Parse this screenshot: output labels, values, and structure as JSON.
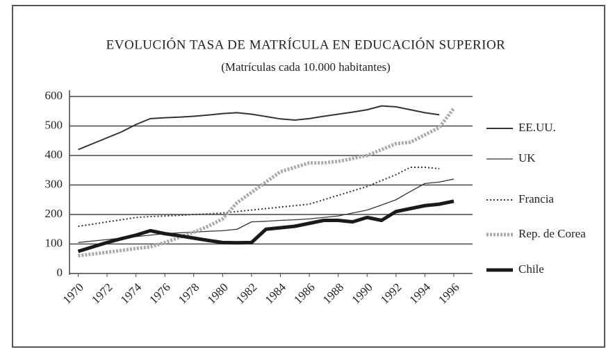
{
  "chart_data": {
    "type": "line",
    "title": "EVOLUCIÓN TASA DE MATRÍCULA EN EDUCACIÓN SUPERIOR",
    "subtitle": "(Matrículas cada 10.000 habitantes)",
    "x": [
      1970,
      1971,
      1972,
      1973,
      1974,
      1975,
      1976,
      1977,
      1978,
      1979,
      1980,
      1981,
      1982,
      1983,
      1984,
      1985,
      1986,
      1987,
      1988,
      1989,
      1990,
      1991,
      1992,
      1993,
      1994,
      1995,
      1996
    ],
    "xlim": [
      1969.4,
      1997.3
    ],
    "xticks": [
      1970,
      1972,
      1974,
      1976,
      1978,
      1980,
      1982,
      1984,
      1986,
      1988,
      1990,
      1992,
      1994,
      1996
    ],
    "ylim": [
      0,
      600
    ],
    "yticks": [
      0,
      100,
      200,
      300,
      400,
      500,
      600
    ],
    "grid": true,
    "legend": "right",
    "series": [
      {
        "name": "EE.UU.",
        "color": "#333333",
        "style": "solid",
        "values": [
          420,
          440,
          460,
          480,
          505,
          525,
          528,
          530,
          533,
          537,
          542,
          545,
          540,
          532,
          524,
          520,
          525,
          533,
          540,
          547,
          555,
          568,
          565,
          555,
          545,
          538,
          null
        ]
      },
      {
        "name": "UK",
        "color": "#333333",
        "style": "thin",
        "values": [
          105,
          110,
          115,
          120,
          125,
          130,
          135,
          138,
          140,
          143,
          145,
          150,
          175,
          177,
          180,
          182,
          185,
          190,
          195,
          205,
          215,
          232,
          250,
          278,
          305,
          310,
          320
        ]
      },
      {
        "name": "Francia",
        "color": "#333333",
        "style": "dotted",
        "values": [
          160,
          167,
          175,
          182,
          190,
          193,
          195,
          197,
          200,
          202,
          205,
          210,
          215,
          220,
          225,
          230,
          235,
          250,
          265,
          280,
          295,
          315,
          335,
          360,
          360,
          355,
          null
        ]
      },
      {
        "name": "Rep. de Corea",
        "color": "#aaaaaa",
        "style": "textured",
        "values": [
          60,
          66,
          72,
          78,
          85,
          90,
          105,
          122,
          140,
          160,
          185,
          240,
          275,
          310,
          345,
          360,
          375,
          375,
          380,
          390,
          400,
          420,
          440,
          445,
          470,
          495,
          560
        ]
      },
      {
        "name": "Chile",
        "color": "#1a1a1a",
        "style": "thick",
        "values": [
          75,
          90,
          105,
          118,
          130,
          145,
          135,
          128,
          120,
          112,
          105,
          104,
          105,
          150,
          155,
          160,
          170,
          180,
          180,
          175,
          190,
          180,
          210,
          220,
          230,
          235,
          245
        ]
      }
    ]
  }
}
